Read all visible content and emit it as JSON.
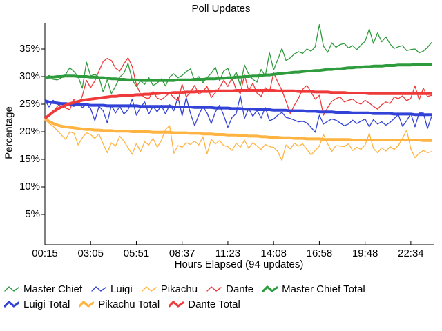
{
  "chart_data": {
    "type": "line",
    "title": "Poll Updates",
    "xlabel": "Hours Elapsed (94 updates)",
    "ylabel": "Percentage",
    "n_points": 94,
    "x_tick_labels": [
      "00:15",
      "03:05",
      "05:51",
      "08:37",
      "11:23",
      "14:08",
      "16:58",
      "19:48",
      "22:34"
    ],
    "x_tick_indices": [
      0,
      11,
      22,
      33,
      44,
      55,
      66,
      77,
      88
    ],
    "y_ticks": [
      5,
      10,
      15,
      20,
      25,
      30,
      35
    ],
    "y_tick_suffix": "%",
    "ylim": [
      0,
      39.8
    ],
    "grid": false,
    "legend_position": "bottom",
    "series": [
      {
        "name": "Master Chief",
        "color": "#2e9b3d",
        "style": "thin",
        "values": [
          29.6,
          30.2,
          29.5,
          29.4,
          29.8,
          30.4,
          31.6,
          30.9,
          30.0,
          27.9,
          32.6,
          30.1,
          30.4,
          29.9,
          27.2,
          29.4,
          26.9,
          28.3,
          29.9,
          30.6,
          32.4,
          29.4,
          28.2,
          29.2,
          28.6,
          29.8,
          28.4,
          28.8,
          29.6,
          28.3,
          29.9,
          30.5,
          29.8,
          30.2,
          30.9,
          31.4,
          29.2,
          30.0,
          28.9,
          29.8,
          30.6,
          31.7,
          29.2,
          31.0,
          31.5,
          29.3,
          30.8,
          28.3,
          32.1,
          30.4,
          29.5,
          29.0,
          31.3,
          30.1,
          34.3,
          31.2,
          33.1,
          35.1,
          32.9,
          33.4,
          34.1,
          34.5,
          34.2,
          35.0,
          34.6,
          35.4,
          39.4,
          35.5,
          34.4,
          36.1,
          35.3,
          35.8,
          36.0,
          35.2,
          35.6,
          34.9,
          35.7,
          36.4,
          38.6,
          36.0,
          37.9,
          36.3,
          37.2,
          35.9,
          35.1,
          35.4,
          35.6,
          34.7,
          34.9,
          35.0,
          34.3,
          34.6,
          35.3,
          36.2
        ]
      },
      {
        "name": "Luigi",
        "color": "#3342d6",
        "style": "thin",
        "values": [
          25.7,
          24.5,
          25.7,
          25.0,
          24.6,
          25.2,
          24.8,
          24.6,
          25.1,
          24.4,
          24.9,
          24.2,
          22.0,
          24.6,
          23.8,
          21.6,
          24.8,
          23.4,
          24.6,
          23.2,
          24.0,
          25.9,
          23.0,
          24.4,
          25.4,
          23.2,
          24.6,
          23.6,
          24.8,
          23.2,
          24.9,
          23.8,
          26.3,
          22.9,
          26.2,
          23.3,
          21.1,
          23.0,
          24.6,
          23.4,
          21.5,
          23.6,
          24.8,
          23.0,
          20.8,
          22.6,
          23.3,
          26.5,
          22.4,
          24.2,
          22.8,
          23.9,
          22.5,
          24.4,
          22.0,
          22.3,
          23.0,
          23.5,
          22.6,
          22.4,
          22.1,
          21.8,
          21.9,
          21.6,
          20.8,
          19.9,
          23.0,
          21.4,
          21.9,
          22.3,
          22.1,
          21.6,
          21.1,
          21.4,
          22.1,
          21.5,
          21.9,
          22.3,
          20.9,
          22.2,
          21.4,
          21.8,
          21.2,
          21.7,
          22.4,
          23.1,
          21.0,
          22.0,
          23.3,
          20.9,
          23.4,
          23.4,
          20.6,
          22.8
        ]
      },
      {
        "name": "Pikachu",
        "color": "#ffb340",
        "style": "thin",
        "values": [
          22.3,
          21.5,
          21.0,
          20.2,
          19.4,
          18.6,
          20.0,
          19.7,
          17.6,
          18.9,
          19.8,
          19.5,
          18.8,
          19.6,
          17.8,
          16.2,
          18.0,
          17.4,
          19.2,
          18.3,
          17.1,
          15.9,
          17.9,
          16.4,
          18.2,
          17.6,
          18.8,
          17.2,
          18.4,
          20.4,
          21.1,
          16.1,
          17.5,
          17.2,
          18.0,
          17.7,
          18.3,
          17.6,
          19.1,
          16.0,
          18.6,
          17.8,
          18.4,
          17.5,
          17.3,
          16.6,
          17.9,
          17.2,
          18.5,
          17.0,
          18.0,
          17.4,
          16.8,
          17.7,
          17.3,
          17.2,
          16.4,
          14.8,
          17.6,
          16.9,
          17.9,
          17.4,
          17.8,
          16.8,
          15.8,
          16.6,
          17.4,
          19.5,
          17.8,
          16.4,
          17.5,
          17.4,
          17.3,
          17.8,
          16.6,
          17.2,
          16.8,
          17.6,
          19.7,
          17.0,
          16.2,
          17.1,
          16.5,
          17.3,
          16.8,
          17.5,
          18.8,
          20.3,
          16.9,
          15.3,
          16.1,
          16.6,
          16.2,
          16.4
        ]
      },
      {
        "name": "Dante",
        "color": "#ee3a3a",
        "style": "thin",
        "values": [
          22.4,
          23.0,
          23.6,
          24.6,
          25.2,
          24.3,
          24.0,
          25.9,
          24.7,
          26.5,
          29.3,
          28.0,
          29.2,
          31.0,
          32.7,
          33.3,
          32.9,
          31.5,
          31.0,
          32.3,
          33.4,
          31.8,
          28.5,
          26.8,
          26.2,
          26.0,
          27.3,
          26.1,
          25.8,
          26.4,
          27.0,
          26.2,
          25.6,
          28.6,
          26.3,
          27.2,
          28.4,
          26.8,
          27.3,
          28.2,
          26.2,
          27.1,
          28.0,
          29.3,
          28.2,
          29.8,
          27.6,
          26.9,
          30.3,
          27.4,
          28.8,
          27.0,
          26.4,
          28.0,
          27.2,
          30.7,
          29.0,
          27.5,
          25.5,
          23.3,
          24.8,
          26.1,
          27.7,
          28.4,
          27.2,
          25.9,
          26.6,
          23.0,
          24.4,
          25.5,
          26.0,
          26.3,
          25.4,
          25.7,
          25.9,
          25.3,
          25.0,
          25.7,
          25.2,
          24.6,
          24.1,
          24.9,
          25.4,
          25.1,
          26.3,
          26.0,
          26.5,
          25.6,
          26.1,
          28.3,
          25.8,
          27.9,
          26.4,
          26.6
        ]
      },
      {
        "name": "Master Chief Total",
        "color": "#2e9b3d",
        "style": "total",
        "values": [
          29.8,
          29.9,
          29.9,
          30.0,
          30.0,
          30.1,
          30.1,
          30.1,
          30.0,
          30.0,
          30.0,
          29.9,
          29.9,
          29.8,
          29.8,
          29.7,
          29.6,
          29.6,
          29.5,
          29.5,
          29.4,
          29.4,
          29.4,
          29.3,
          29.3,
          29.3,
          29.3,
          29.3,
          29.3,
          29.3,
          29.3,
          29.3,
          29.4,
          29.4,
          29.4,
          29.4,
          29.5,
          29.5,
          29.5,
          29.6,
          29.6,
          29.6,
          29.7,
          29.7,
          29.8,
          29.8,
          29.9,
          29.9,
          30.0,
          30.0,
          30.1,
          30.1,
          30.2,
          30.3,
          30.3,
          30.4,
          30.5,
          30.5,
          30.6,
          30.7,
          30.8,
          30.8,
          30.9,
          31.0,
          31.0,
          31.1,
          31.1,
          31.2,
          31.3,
          31.3,
          31.4,
          31.4,
          31.5,
          31.6,
          31.6,
          31.7,
          31.7,
          31.8,
          31.8,
          31.9,
          31.9,
          31.9,
          32.0,
          32.0,
          32.0,
          32.1,
          32.1,
          32.1,
          32.1,
          32.2,
          32.2,
          32.2,
          32.2,
          32.2
        ]
      },
      {
        "name": "Luigi Total",
        "color": "#3342d6",
        "style": "total",
        "values": [
          25.6,
          25.4,
          25.3,
          25.2,
          25.1,
          25.1,
          25.0,
          25.0,
          24.9,
          24.9,
          24.9,
          24.8,
          24.8,
          24.8,
          24.8,
          24.7,
          24.7,
          24.7,
          24.7,
          24.7,
          24.7,
          24.7,
          24.7,
          24.6,
          24.6,
          24.6,
          24.6,
          24.6,
          24.6,
          24.6,
          24.6,
          24.5,
          24.5,
          24.5,
          24.5,
          24.5,
          24.4,
          24.4,
          24.4,
          24.4,
          24.4,
          24.3,
          24.3,
          24.3,
          24.3,
          24.2,
          24.2,
          24.2,
          24.1,
          24.1,
          24.1,
          24.0,
          24.0,
          24.0,
          24.0,
          23.9,
          23.9,
          23.9,
          23.9,
          23.8,
          23.8,
          23.8,
          23.8,
          23.7,
          23.7,
          23.7,
          23.6,
          23.6,
          23.6,
          23.6,
          23.5,
          23.5,
          23.5,
          23.5,
          23.4,
          23.4,
          23.4,
          23.4,
          23.4,
          23.3,
          23.3,
          23.3,
          23.3,
          23.3,
          23.2,
          23.2,
          23.2,
          23.2,
          23.2,
          23.1,
          23.1,
          23.1,
          23.1,
          23.1
        ]
      },
      {
        "name": "Pikachu Total",
        "color": "#ffb340",
        "style": "total",
        "values": [
          22.3,
          21.9,
          21.5,
          21.2,
          21.0,
          20.9,
          20.8,
          20.7,
          20.6,
          20.5,
          20.4,
          20.4,
          20.3,
          20.3,
          20.2,
          20.2,
          20.2,
          20.1,
          20.1,
          20.1,
          20.1,
          20.0,
          20.0,
          20.0,
          20.0,
          20.0,
          19.9,
          19.9,
          19.9,
          19.9,
          19.9,
          19.8,
          19.8,
          19.8,
          19.8,
          19.7,
          19.7,
          19.7,
          19.6,
          19.6,
          19.6,
          19.5,
          19.5,
          19.5,
          19.4,
          19.4,
          19.4,
          19.3,
          19.3,
          19.2,
          19.2,
          19.2,
          19.1,
          19.1,
          19.0,
          19.0,
          19.0,
          18.9,
          18.9,
          18.9,
          18.8,
          18.8,
          18.8,
          18.7,
          18.7,
          18.7,
          18.7,
          18.6,
          18.6,
          18.6,
          18.6,
          18.6,
          18.6,
          18.6,
          18.5,
          18.5,
          18.5,
          18.5,
          18.5,
          18.5,
          18.5,
          18.5,
          18.5,
          18.5,
          18.5,
          18.5,
          18.5,
          18.5,
          18.5,
          18.5,
          18.5,
          18.4,
          18.4,
          18.4
        ]
      },
      {
        "name": "Dante Total",
        "color": "#ee3a3a",
        "style": "total",
        "values": [
          22.4,
          23.0,
          23.6,
          24.1,
          24.5,
          24.8,
          25.1,
          25.3,
          25.5,
          25.7,
          25.8,
          25.9,
          26.0,
          26.1,
          26.2,
          26.3,
          26.4,
          26.4,
          26.5,
          26.5,
          26.6,
          26.6,
          26.7,
          26.7,
          26.8,
          26.8,
          26.9,
          26.9,
          27.0,
          27.0,
          27.0,
          27.1,
          27.1,
          27.1,
          27.2,
          27.2,
          27.2,
          27.3,
          27.3,
          27.3,
          27.3,
          27.4,
          27.4,
          27.4,
          27.4,
          27.4,
          27.5,
          27.5,
          27.5,
          27.5,
          27.5,
          27.5,
          27.5,
          27.5,
          27.5,
          27.5,
          27.4,
          27.4,
          27.4,
          27.4,
          27.4,
          27.3,
          27.3,
          27.3,
          27.3,
          27.2,
          27.2,
          27.2,
          27.2,
          27.1,
          27.1,
          27.1,
          27.1,
          27.0,
          27.0,
          27.0,
          27.0,
          27.0,
          26.9,
          26.9,
          26.9,
          26.9,
          26.9,
          26.9,
          26.9,
          26.9,
          26.9,
          26.9,
          26.9,
          26.9,
          26.9,
          26.9,
          26.9,
          26.9
        ]
      }
    ]
  }
}
